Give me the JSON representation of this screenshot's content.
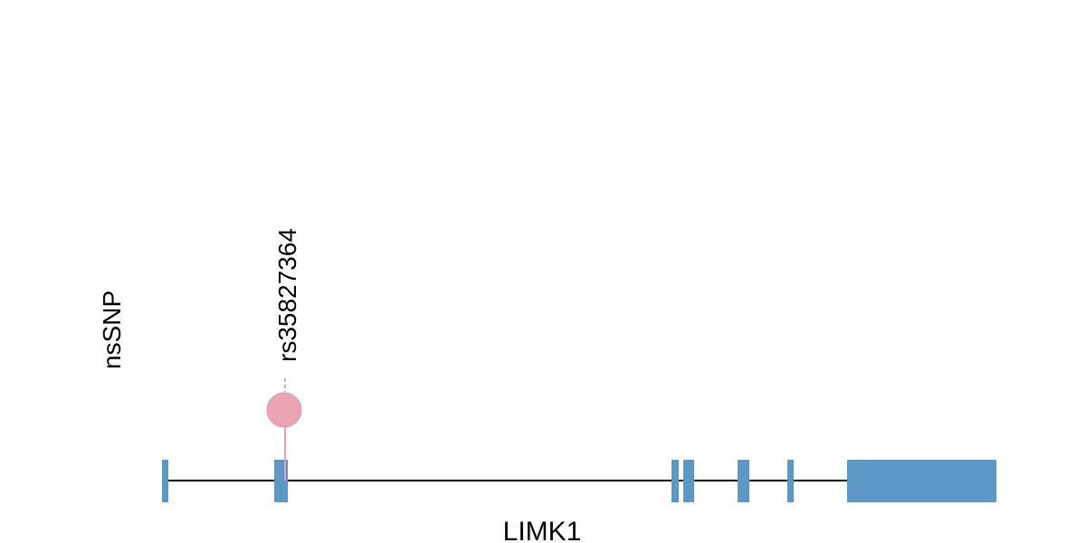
{
  "track": {
    "label": "nsSNP"
  },
  "variants": [
    {
      "label": "rs35827364"
    }
  ],
  "gene": {
    "name": "LIMK1"
  }
}
